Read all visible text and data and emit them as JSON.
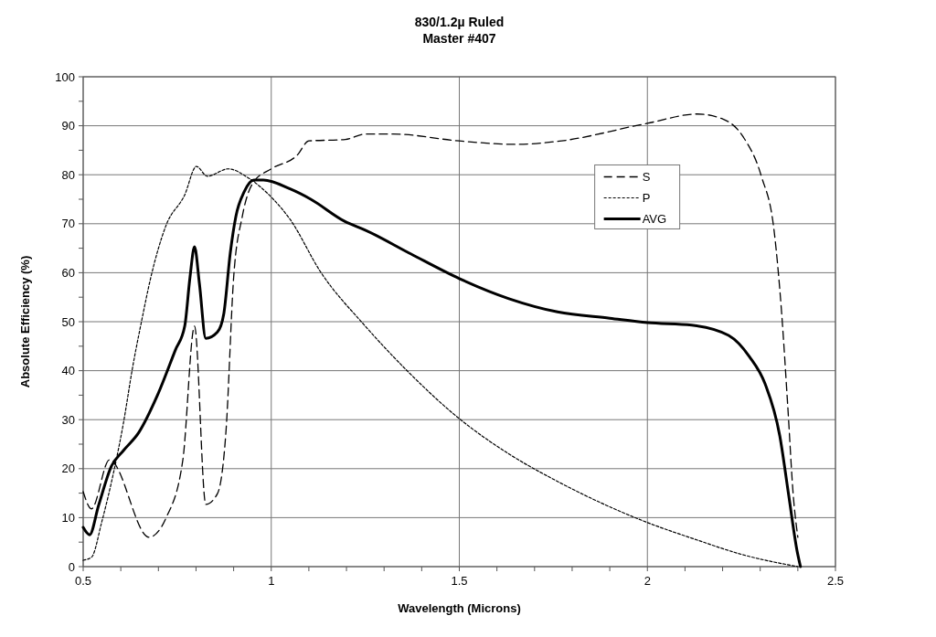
{
  "chart_data": {
    "type": "line",
    "title": "830/1.2µ Ruled\nMaster #407",
    "xlabel": "Wavelength (Microns)",
    "ylabel": "Absolute Efficiency (%)",
    "xlim": [
      0.5,
      2.5
    ],
    "ylim": [
      0,
      100
    ],
    "xticks": [
      0.5,
      {
        "value": 0.6,
        "label": null
      },
      {
        "value": 0.7,
        "label": null
      },
      {
        "value": 0.8,
        "label": null
      },
      {
        "value": 0.9,
        "label": null
      },
      1,
      {
        "value": 1.1,
        "label": null
      },
      {
        "value": 1.2,
        "label": null
      },
      {
        "value": 1.3,
        "label": null
      },
      {
        "value": 1.4,
        "label": null
      },
      1.5,
      {
        "value": 1.6,
        "label": null
      },
      {
        "value": 1.7,
        "label": null
      },
      {
        "value": 1.8,
        "label": null
      },
      {
        "value": 1.9,
        "label": null
      },
      2,
      {
        "value": 2.1,
        "label": null
      },
      {
        "value": 2.2,
        "label": null
      },
      {
        "value": 2.3,
        "label": null
      },
      {
        "value": 2.4,
        "label": null
      },
      2.5
    ],
    "yticks": [
      0,
      {
        "value": 5,
        "label": null
      },
      10,
      {
        "value": 15,
        "label": null
      },
      20,
      {
        "value": 25,
        "label": null
      },
      30,
      {
        "value": 35,
        "label": null
      },
      40,
      {
        "value": 45,
        "label": null
      },
      50,
      {
        "value": 55,
        "label": null
      },
      60,
      {
        "value": 65,
        "label": null
      },
      70,
      {
        "value": 75,
        "label": null
      },
      80,
      {
        "value": 85,
        "label": null
      },
      90,
      {
        "value": 95,
        "label": null
      },
      100
    ],
    "grid": true,
    "legend": "top right",
    "series": [
      {
        "name": "S",
        "color": "#000000",
        "line_style": "dashed",
        "x": [
          0.5,
          0.522,
          0.57,
          0.675,
          0.72,
          0.765,
          0.796,
          0.826,
          0.857,
          0.88,
          0.9,
          0.923,
          0.952,
          1.0,
          1.069,
          1.1,
          1.197,
          1.25,
          1.324,
          1.5,
          1.647,
          1.76,
          2.0,
          2.133,
          2.2,
          2.255,
          2.303,
          2.337,
          2.357,
          2.373,
          2.388,
          2.4
        ],
        "values": [
          15.3,
          11.8,
          21.8,
          6.0,
          9.9,
          21.8,
          49.1,
          12.7,
          14.9,
          28,
          59,
          71.5,
          78.4,
          81.2,
          84,
          86.9,
          87.2,
          88.3,
          88.3,
          86.9,
          86.2,
          86.8,
          90.5,
          92.4,
          91.4,
          87.7,
          79.7,
          68.5,
          51.7,
          33,
          14.4,
          6
        ]
      },
      {
        "name": "P",
        "color": "#000000",
        "line_style": "dotted",
        "x": [
          0.5,
          0.522,
          0.55,
          0.583,
          0.607,
          0.631,
          0.656,
          0.68,
          0.72,
          0.77,
          0.801,
          0.83,
          0.886,
          0.94,
          1.003,
          1.05,
          1.13,
          1.25,
          1.365,
          1.5,
          1.632,
          1.761,
          2.0,
          2.126,
          2.255,
          2.4
        ],
        "values": [
          1.3,
          1.9,
          9.3,
          20,
          29.3,
          40.5,
          50.4,
          59.1,
          69.6,
          75.9,
          81.7,
          79.7,
          81.2,
          79.3,
          75.2,
          70.9,
          60.3,
          49.1,
          39.7,
          30.2,
          23,
          17.4,
          9,
          5.6,
          2.4,
          0
        ]
      },
      {
        "name": "AVG",
        "color": "#000000",
        "line_style": "solid",
        "x": [
          0.5,
          0.517,
          0.541,
          0.575,
          0.607,
          0.648,
          0.697,
          0.745,
          0.77,
          0.784,
          0.796,
          0.809,
          0.826,
          0.857,
          0.874,
          0.891,
          0.906,
          0.928,
          0.954,
          0.979,
          1.05,
          1.105,
          1.195,
          1.25,
          1.372,
          1.5,
          1.632,
          1.761,
          1.9,
          2.0,
          2.118,
          2.216,
          2.271,
          2.313,
          2.352,
          2.376,
          2.398,
          2.407
        ],
        "values": [
          8,
          6.5,
          12.5,
          20.5,
          23.7,
          27.4,
          34.9,
          44.2,
          49.1,
          59.1,
          65.3,
          57.8,
          46.6,
          47.9,
          51.7,
          64,
          71.5,
          76.5,
          78.9,
          78.9,
          77.1,
          75,
          70.5,
          68.7,
          63.8,
          58.8,
          54.7,
          52,
          50.7,
          49.8,
          49.3,
          47.2,
          42.9,
          37.3,
          26.7,
          14.4,
          3.2,
          0
        ]
      }
    ]
  }
}
